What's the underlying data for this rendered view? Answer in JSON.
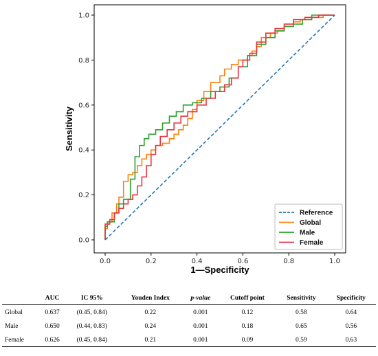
{
  "chart_data": {
    "type": "line",
    "xlabel": "1—Specificity",
    "ylabel": "Sensitivity",
    "xlim": [
      0.0,
      1.0
    ],
    "ylim": [
      0.0,
      1.0
    ],
    "xticks": [
      "0.0",
      "0.2",
      "0.4",
      "0.6",
      "0.8",
      "1.0"
    ],
    "yticks": [
      "0.0",
      "0.2",
      "0.4",
      "0.6",
      "0.8",
      "1.0"
    ],
    "grid": false,
    "legend_position": "bottom-right",
    "series": [
      {
        "name": "Reference",
        "color": "#1f77b4",
        "style": "dashed",
        "points": [
          [
            0,
            0
          ],
          [
            1,
            1
          ]
        ]
      },
      {
        "name": "Global",
        "color": "#ff7f0e",
        "style": "solid",
        "points": [
          [
            0,
            0
          ],
          [
            0.01,
            0.05
          ],
          [
            0.03,
            0.08
          ],
          [
            0.05,
            0.12
          ],
          [
            0.06,
            0.16
          ],
          [
            0.08,
            0.19
          ],
          [
            0.1,
            0.26
          ],
          [
            0.12,
            0.29
          ],
          [
            0.14,
            0.3
          ],
          [
            0.16,
            0.33
          ],
          [
            0.18,
            0.36
          ],
          [
            0.2,
            0.38
          ],
          [
            0.22,
            0.4
          ],
          [
            0.25,
            0.42
          ],
          [
            0.28,
            0.43
          ],
          [
            0.3,
            0.45
          ],
          [
            0.32,
            0.47
          ],
          [
            0.34,
            0.49
          ],
          [
            0.36,
            0.51
          ],
          [
            0.38,
            0.54
          ],
          [
            0.4,
            0.58
          ],
          [
            0.43,
            0.62
          ],
          [
            0.46,
            0.66
          ],
          [
            0.5,
            0.7
          ],
          [
            0.52,
            0.73
          ],
          [
            0.55,
            0.76
          ],
          [
            0.58,
            0.78
          ],
          [
            0.62,
            0.8
          ],
          [
            0.64,
            0.82
          ],
          [
            0.66,
            0.84
          ],
          [
            0.68,
            0.86
          ],
          [
            0.72,
            0.9
          ],
          [
            0.75,
            0.92
          ],
          [
            0.78,
            0.93
          ],
          [
            0.82,
            0.95
          ],
          [
            0.85,
            0.97
          ],
          [
            0.9,
            0.98
          ],
          [
            0.95,
            0.99
          ],
          [
            1.0,
            1.0
          ]
        ]
      },
      {
        "name": "Male",
        "color": "#2ca02c",
        "style": "solid",
        "points": [
          [
            0,
            0
          ],
          [
            0.01,
            0.06
          ],
          [
            0.04,
            0.08
          ],
          [
            0.06,
            0.12
          ],
          [
            0.08,
            0.16
          ],
          [
            0.11,
            0.18
          ],
          [
            0.13,
            0.27
          ],
          [
            0.15,
            0.37
          ],
          [
            0.17,
            0.42
          ],
          [
            0.19,
            0.45
          ],
          [
            0.22,
            0.47
          ],
          [
            0.25,
            0.49
          ],
          [
            0.28,
            0.52
          ],
          [
            0.31,
            0.55
          ],
          [
            0.34,
            0.57
          ],
          [
            0.38,
            0.6
          ],
          [
            0.42,
            0.61
          ],
          [
            0.46,
            0.63
          ],
          [
            0.5,
            0.66
          ],
          [
            0.54,
            0.68
          ],
          [
            0.58,
            0.72
          ],
          [
            0.62,
            0.77
          ],
          [
            0.66,
            0.82
          ],
          [
            0.7,
            0.87
          ],
          [
            0.74,
            0.9
          ],
          [
            0.78,
            0.93
          ],
          [
            0.82,
            0.95
          ],
          [
            0.86,
            0.96
          ],
          [
            0.9,
            0.98
          ],
          [
            0.94,
            1.0
          ],
          [
            1.0,
            1.0
          ]
        ]
      },
      {
        "name": "Female",
        "color": "#e8333f",
        "style": "solid",
        "points": [
          [
            0,
            0
          ],
          [
            0.02,
            0.07
          ],
          [
            0.04,
            0.09
          ],
          [
            0.06,
            0.12
          ],
          [
            0.08,
            0.14
          ],
          [
            0.1,
            0.16
          ],
          [
            0.12,
            0.18
          ],
          [
            0.14,
            0.2
          ],
          [
            0.16,
            0.24
          ],
          [
            0.18,
            0.28
          ],
          [
            0.2,
            0.33
          ],
          [
            0.22,
            0.38
          ],
          [
            0.24,
            0.42
          ],
          [
            0.27,
            0.46
          ],
          [
            0.3,
            0.49
          ],
          [
            0.33,
            0.52
          ],
          [
            0.36,
            0.55
          ],
          [
            0.4,
            0.57
          ],
          [
            0.44,
            0.6
          ],
          [
            0.48,
            0.63
          ],
          [
            0.52,
            0.66
          ],
          [
            0.55,
            0.69
          ],
          [
            0.58,
            0.72
          ],
          [
            0.6,
            0.77
          ],
          [
            0.63,
            0.8
          ],
          [
            0.66,
            0.83
          ],
          [
            0.7,
            0.88
          ],
          [
            0.74,
            0.92
          ],
          [
            0.78,
            0.94
          ],
          [
            0.82,
            0.96
          ],
          [
            0.87,
            0.98
          ],
          [
            0.93,
            0.99
          ],
          [
            1.0,
            1.0
          ]
        ]
      }
    ]
  },
  "table": {
    "headers": [
      "",
      "AUC",
      "IC 95%",
      "Youden Index",
      "p-value",
      "Cutoff point",
      "Sensitivity",
      "Specificity"
    ],
    "rows": [
      [
        "Global",
        "0.637",
        "(0.45, 0.84)",
        "0.22",
        "0.001",
        "0.12",
        "0.58",
        "0.64"
      ],
      [
        "Male",
        "0.650",
        "(0.44, 0.83)",
        "0.24",
        "0.001",
        "0.18",
        "0.65",
        "0.56"
      ],
      [
        "Female",
        "0.626",
        "(0.45, 0.84)",
        "0.21",
        "0.001",
        "0.09",
        "0.59",
        "0.63"
      ]
    ]
  }
}
